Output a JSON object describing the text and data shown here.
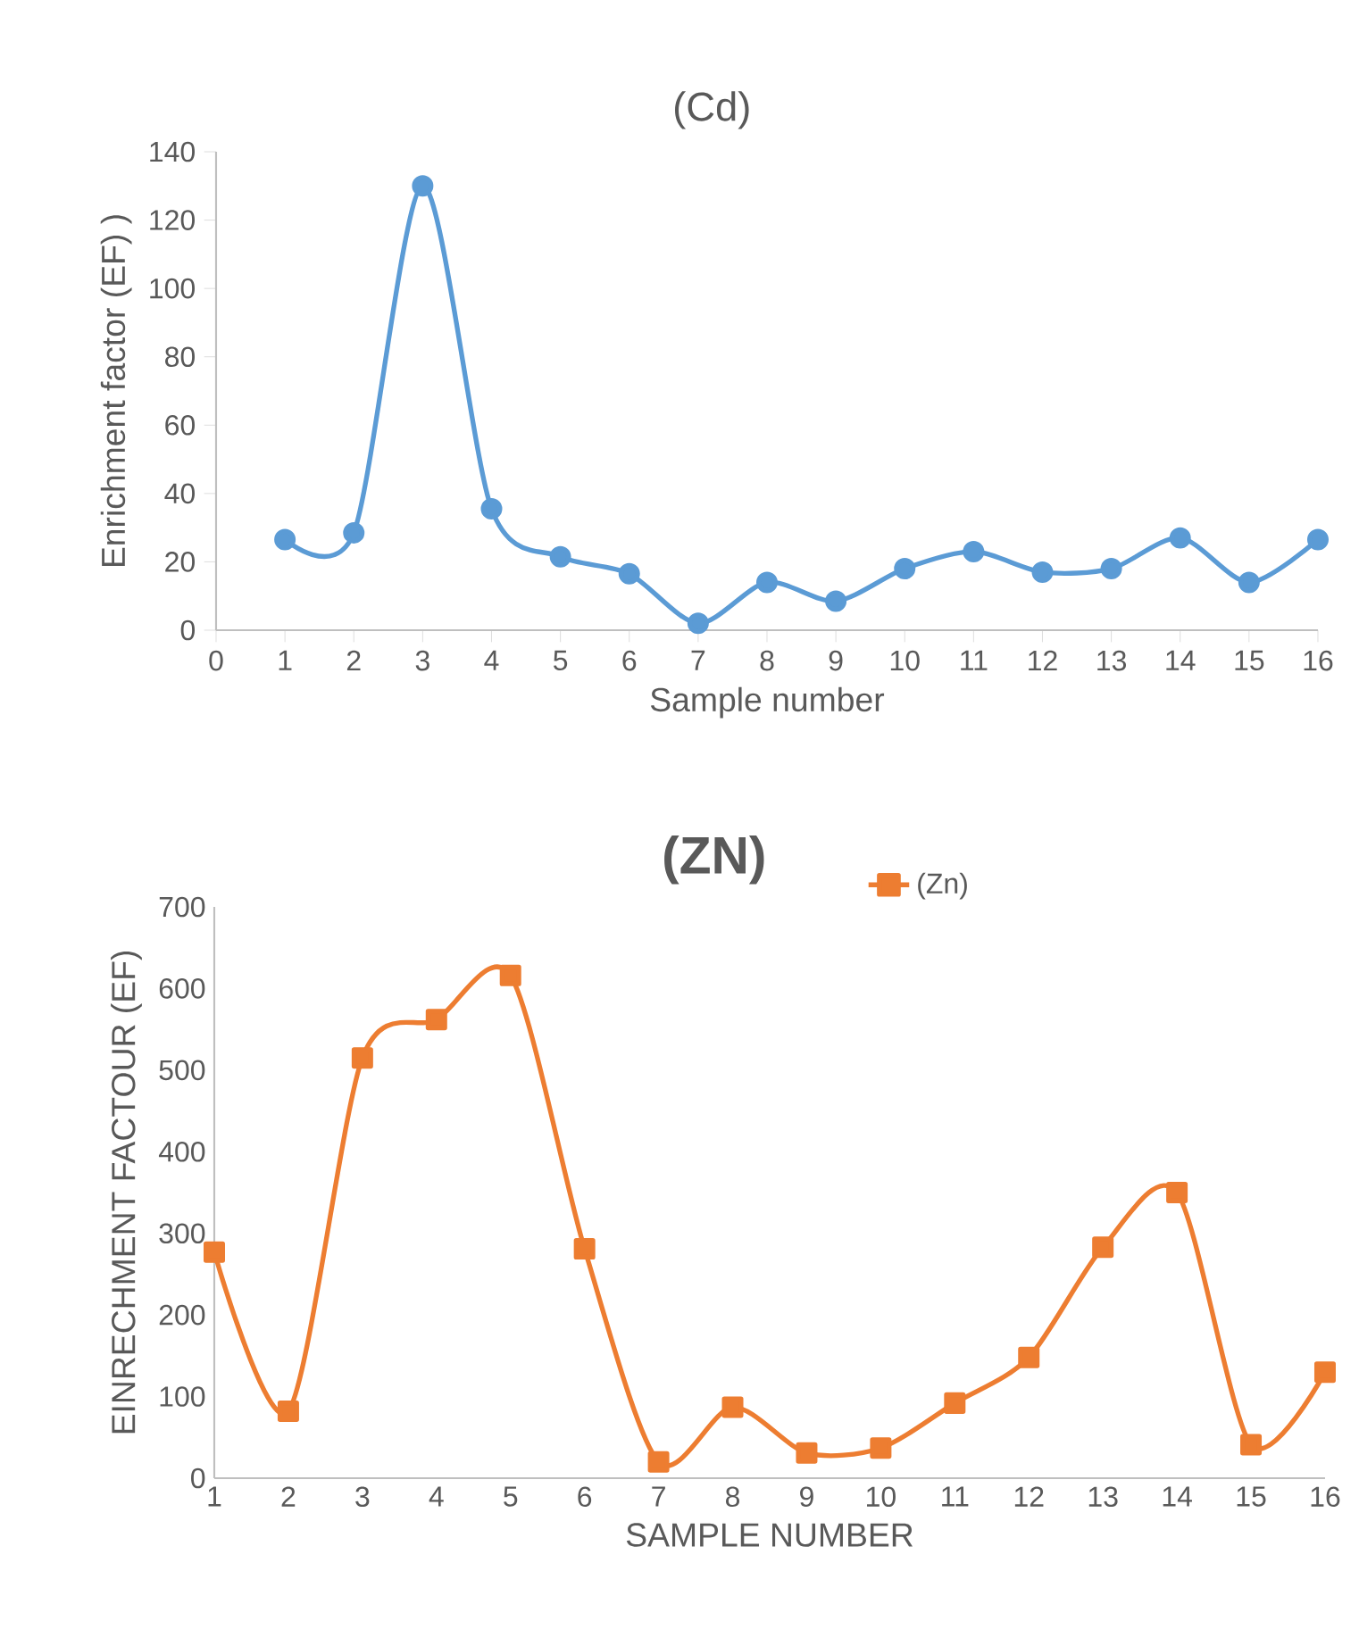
{
  "chart_data": [
    {
      "type": "line",
      "title": "(Cd)",
      "xlabel": "Sample number",
      "ylabel": "Enrichment factor (EF) )",
      "x": [
        1,
        2,
        3,
        4,
        5,
        6,
        7,
        8,
        9,
        10,
        11,
        12,
        13,
        14,
        15,
        16
      ],
      "values": [
        26.5,
        28.5,
        130,
        35.5,
        21.5,
        16.5,
        2,
        14,
        8.5,
        18,
        23,
        17,
        18,
        27,
        14,
        26.5
      ],
      "color": "#5b9bd5",
      "marker": "circle",
      "line_style": "solid",
      "xlim": [
        0,
        16
      ],
      "xticks": [
        0,
        1,
        2,
        3,
        4,
        5,
        6,
        7,
        8,
        9,
        10,
        11,
        12,
        13,
        14,
        15,
        16
      ],
      "ylim": [
        0,
        140
      ],
      "yticks": [
        0,
        20,
        40,
        60,
        80,
        100,
        120,
        140
      ]
    },
    {
      "type": "line",
      "title": "(ZN)",
      "xlabel": "SAMPLE NUMBER",
      "ylabel": "EINRECHMENT FACTOUR (EF)",
      "categories": [
        "1",
        "2",
        "3",
        "4",
        "5",
        "6",
        "7",
        "8",
        "9",
        "10",
        "11",
        "12",
        "13",
        "14",
        "15",
        "16"
      ],
      "series": [
        {
          "name": "(Zn)",
          "color": "#ed7d31",
          "values": [
            277,
            82,
            515,
            562,
            616,
            281,
            20,
            87,
            31,
            37,
            92,
            148,
            283,
            350,
            41,
            130
          ]
        }
      ],
      "marker": "square",
      "line_style": "solid",
      "legend": "top",
      "ylim": [
        0,
        700
      ],
      "yticks": [
        0,
        100,
        200,
        300,
        400,
        500,
        600,
        700
      ]
    }
  ]
}
